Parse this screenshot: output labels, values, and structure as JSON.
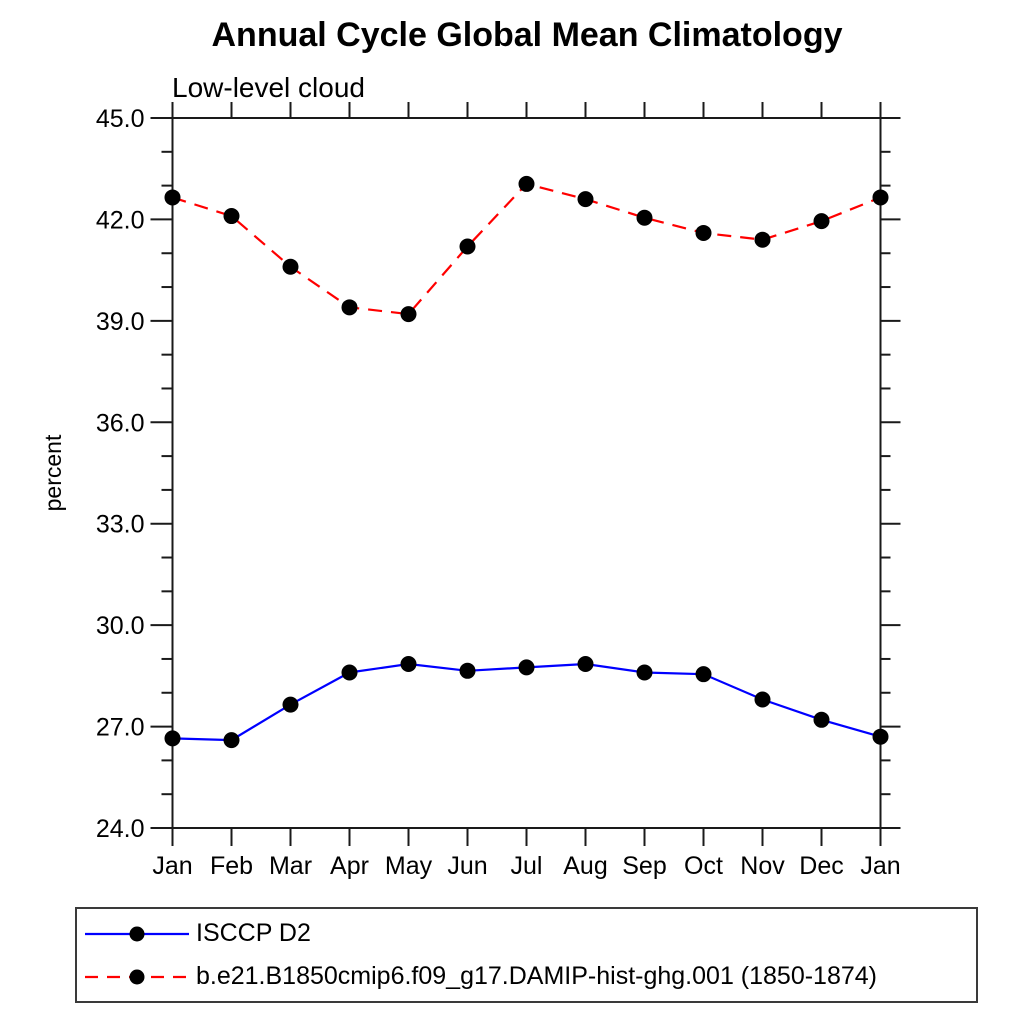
{
  "title": "Annual Cycle Global Mean Climatology",
  "subtitle": "Low-level cloud",
  "ylabel": "percent",
  "chart_data": {
    "type": "line",
    "title": "Annual Cycle Global Mean Climatology",
    "subtitle": "Low-level cloud",
    "ylabel": "percent",
    "xlabel": "",
    "categories": [
      "Jan",
      "Feb",
      "Mar",
      "Apr",
      "May",
      "Jun",
      "Jul",
      "Aug",
      "Sep",
      "Oct",
      "Nov",
      "Dec",
      "Jan"
    ],
    "ylim": [
      24.0,
      45.0
    ],
    "ytick_major_step": 3.0,
    "ytick_minor_step": 1.0,
    "ytick_labels": [
      "45.0",
      "42.0",
      "39.0",
      "36.0",
      "33.0",
      "30.0",
      "27.0",
      "24.0"
    ],
    "grid": false,
    "legend_position": "bottom-left-box",
    "axis_color": "#1a1a1a",
    "marker": {
      "shape": "circle",
      "color": "#000000",
      "radius": 8
    },
    "series": [
      {
        "name": "ISCCP D2",
        "color": "#0000ff",
        "line_style": "solid",
        "values": [
          26.65,
          26.6,
          27.65,
          28.6,
          28.85,
          28.65,
          28.75,
          28.85,
          28.6,
          28.55,
          27.8,
          27.2,
          26.7
        ]
      },
      {
        "name": "b.e21.B1850cmip6.f09_g17.DAMIP-hist-ghg.001 (1850-1874)",
        "color": "#ff0000",
        "line_style": "dashed",
        "values": [
          42.65,
          42.1,
          40.6,
          39.4,
          39.2,
          41.2,
          43.05,
          42.6,
          42.05,
          41.6,
          41.4,
          41.95,
          42.65
        ]
      }
    ]
  }
}
